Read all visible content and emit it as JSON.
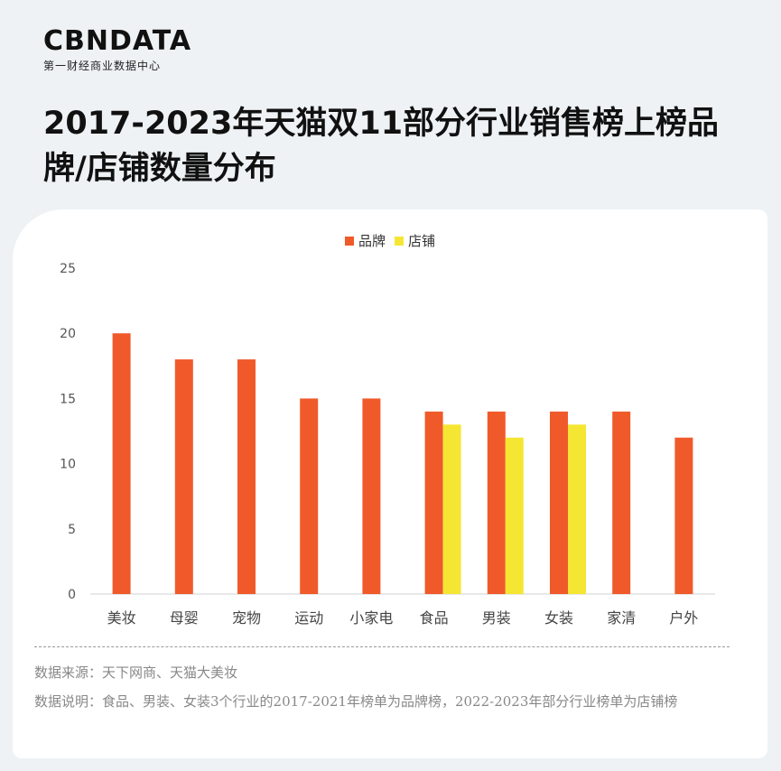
{
  "logo": {
    "main": "CBNDATA",
    "sub": "第一财经商业数据中心"
  },
  "title": "2017-2023年天猫双11部分行业销售榜上榜品牌/店铺数量分布",
  "chart_data": {
    "type": "bar",
    "categories": [
      "美妆",
      "母婴",
      "宠物",
      "运动",
      "小家电",
      "食品",
      "男装",
      "女装",
      "家清",
      "户外"
    ],
    "series": [
      {
        "name": "品牌",
        "color": "#f05a2a",
        "values": [
          20,
          18,
          18,
          15,
          15,
          14,
          14,
          14,
          14,
          12
        ]
      },
      {
        "name": "店铺",
        "color": "#f6e634",
        "values": [
          null,
          null,
          null,
          null,
          null,
          13,
          12,
          13,
          null,
          null
        ]
      }
    ],
    "yticks": [
      0,
      5,
      10,
      15,
      20,
      25
    ],
    "ylim": [
      0,
      25
    ],
    "legend_position": "top-center",
    "grid": false
  },
  "notes": {
    "source": "数据来源：天下网商、天猫大美妆",
    "explanation": "数据说明：食品、男装、女装3个行业的2017-2021年榜单为品牌榜，2022-2023年部分行业榜单为店铺榜"
  }
}
